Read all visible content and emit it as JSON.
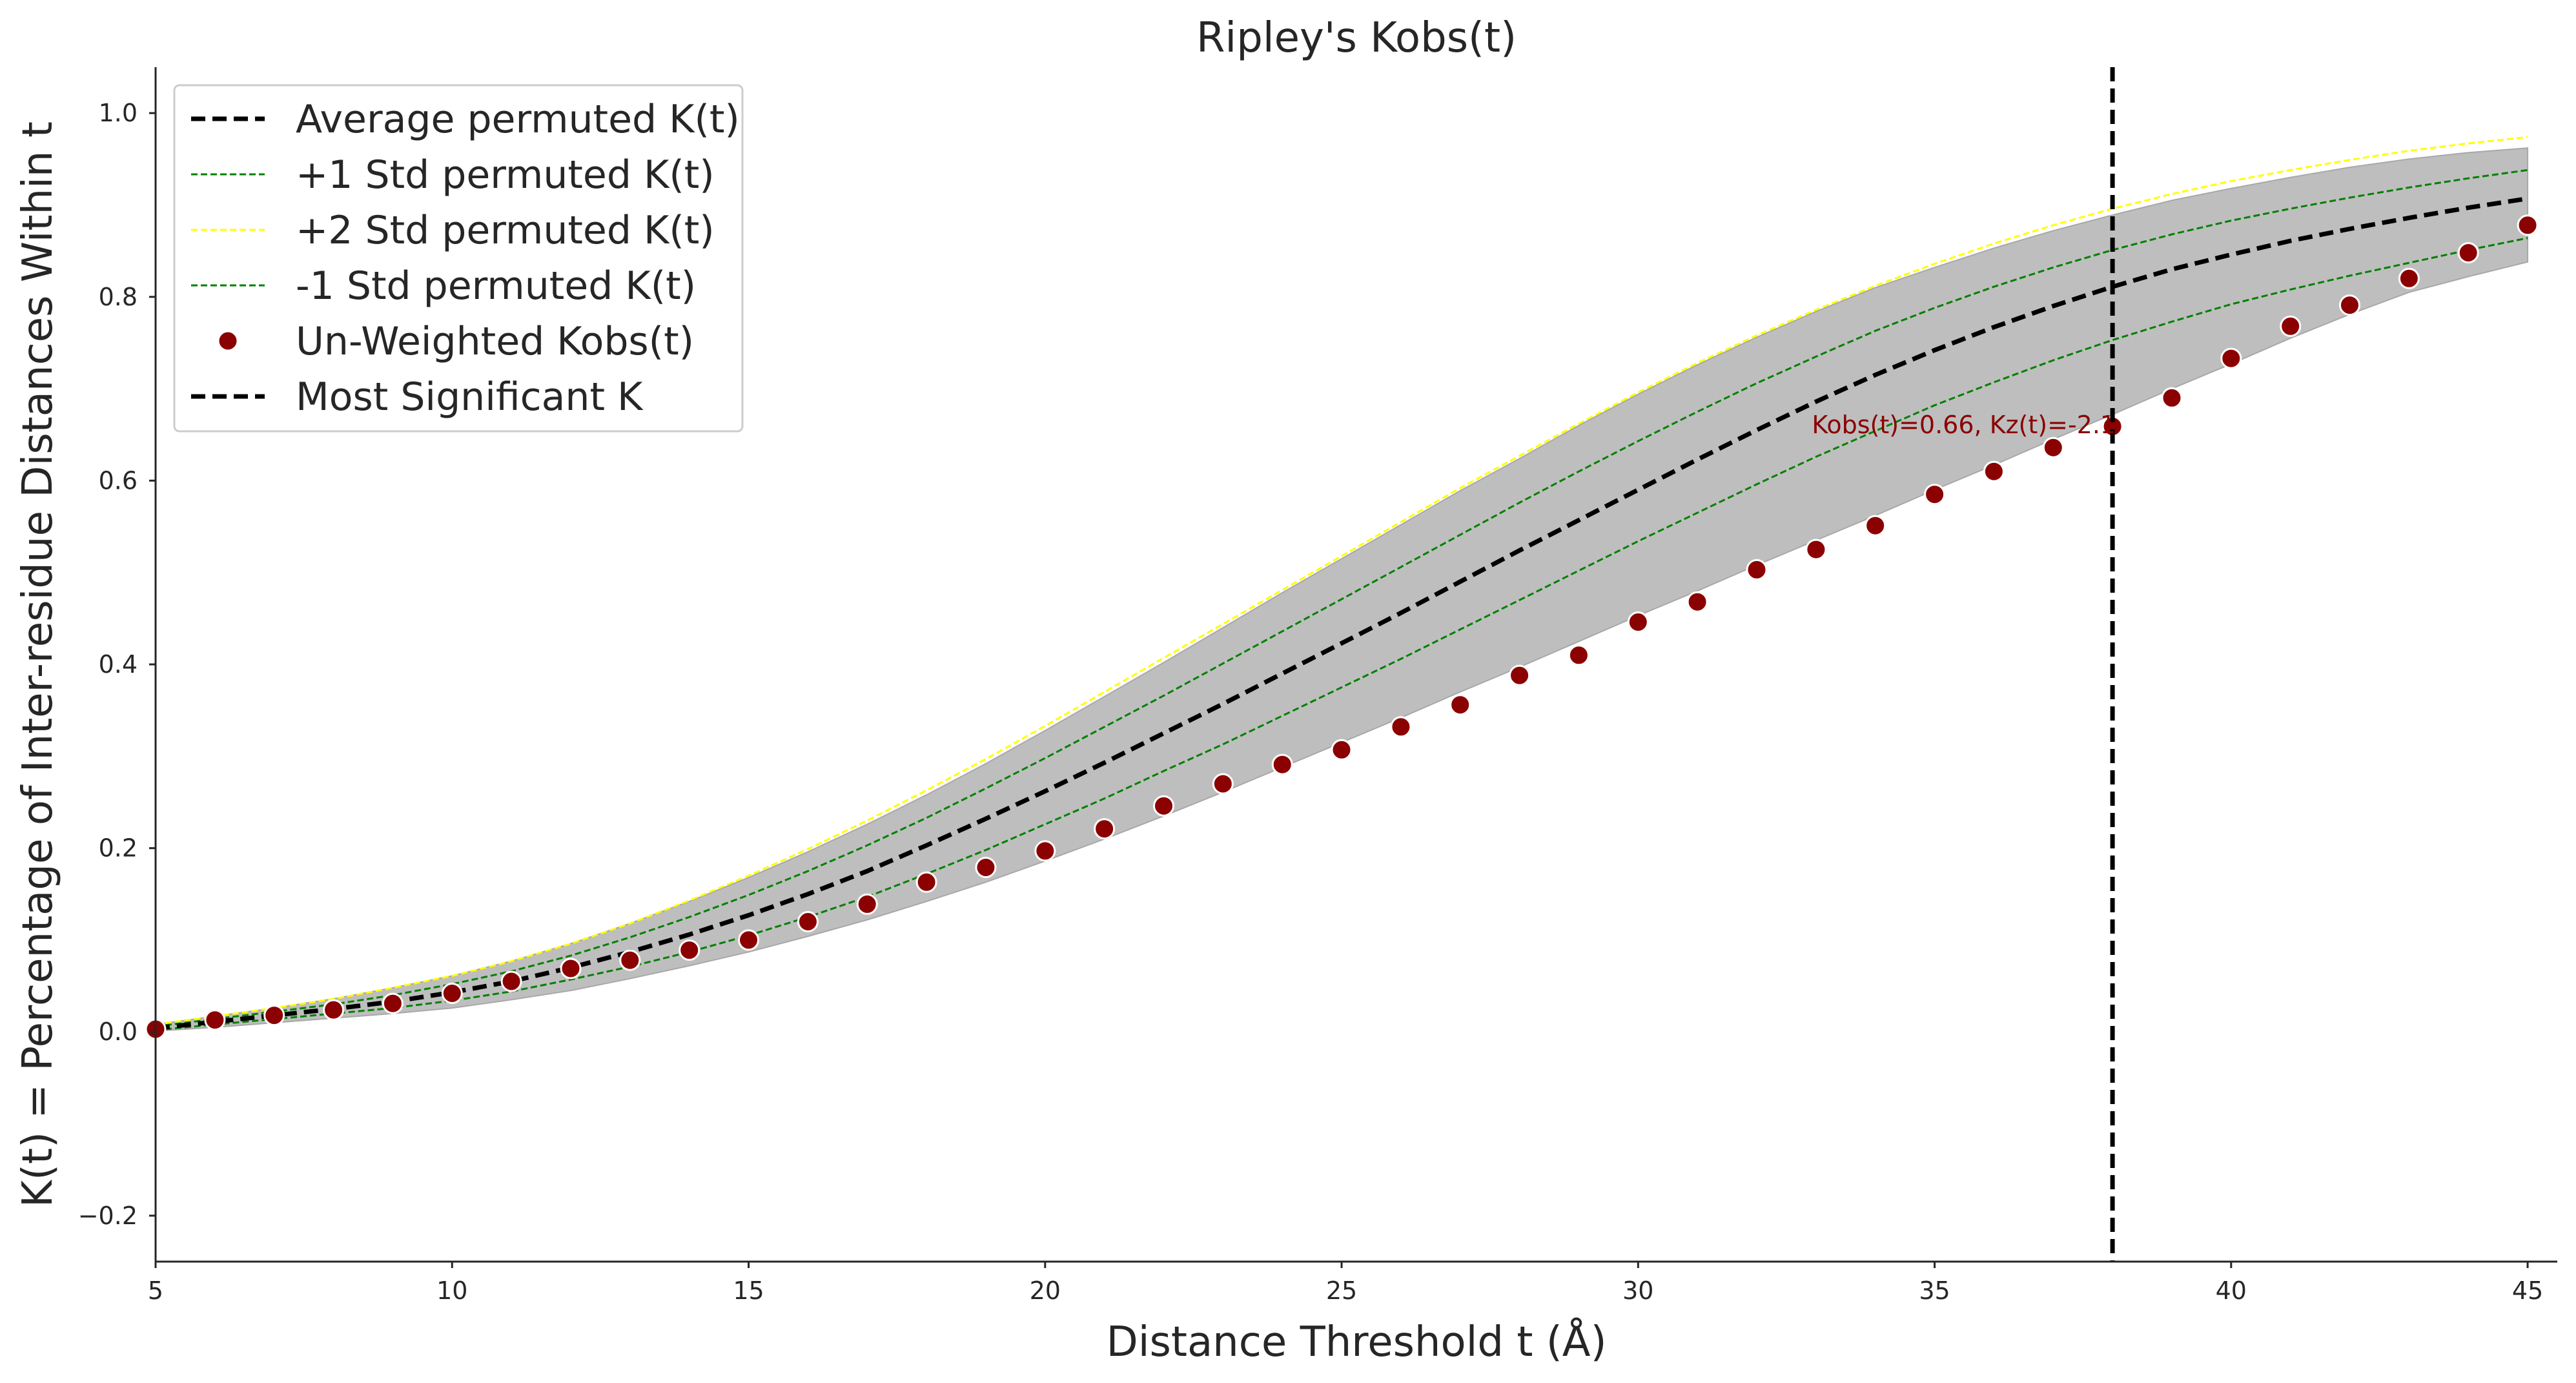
{
  "chart_data": {
    "type": "line",
    "title": "Ripley's Kobs(t)",
    "xlabel": "Distance Threshold t (Å)",
    "ylabel": "K(t) = Percentage of Inter-residue Distances Within t",
    "xlim": [
      5,
      45.5
    ],
    "ylim": [
      -0.25,
      1.05
    ],
    "xticks": [
      5,
      10,
      15,
      20,
      25,
      30,
      35,
      40,
      45
    ],
    "yticks": [
      -0.2,
      0.0,
      0.2,
      0.4,
      0.6,
      0.8,
      1.0
    ],
    "x": [
      5,
      6,
      7,
      8,
      9,
      10,
      11,
      12,
      13,
      14,
      15,
      16,
      17,
      18,
      19,
      20,
      21,
      22,
      23,
      24,
      25,
      26,
      27,
      28,
      29,
      30,
      31,
      32,
      33,
      34,
      35,
      36,
      37,
      38,
      39,
      40,
      41,
      42,
      43,
      44,
      45
    ],
    "series": [
      {
        "name": "Average permuted K(t)",
        "style": "dashed",
        "color": "#000000",
        "values": [
          0.004,
          0.011,
          0.018,
          0.025,
          0.033,
          0.043,
          0.055,
          0.07,
          0.087,
          0.106,
          0.127,
          0.15,
          0.175,
          0.203,
          0.232,
          0.262,
          0.293,
          0.325,
          0.357,
          0.39,
          0.423,
          0.456,
          0.49,
          0.524,
          0.557,
          0.59,
          0.623,
          0.655,
          0.686,
          0.715,
          0.742,
          0.767,
          0.79,
          0.811,
          0.83,
          0.846,
          0.861,
          0.874,
          0.886,
          0.897,
          0.907
        ]
      },
      {
        "name": "+1 Std permuted K(t)",
        "style": "dashed",
        "color": "#008000",
        "values": [
          0.006,
          0.014,
          0.022,
          0.03,
          0.04,
          0.052,
          0.066,
          0.083,
          0.103,
          0.125,
          0.149,
          0.175,
          0.203,
          0.233,
          0.265,
          0.298,
          0.332,
          0.366,
          0.401,
          0.436,
          0.471,
          0.506,
          0.541,
          0.576,
          0.61,
          0.643,
          0.675,
          0.706,
          0.735,
          0.763,
          0.788,
          0.811,
          0.832,
          0.851,
          0.868,
          0.883,
          0.896,
          0.908,
          0.919,
          0.929,
          0.938
        ]
      },
      {
        "name": "+2 Std permuted K(t)",
        "style": "dashed",
        "color": "#ffff00",
        "values": [
          0.008,
          0.017,
          0.026,
          0.036,
          0.048,
          0.061,
          0.077,
          0.096,
          0.118,
          0.143,
          0.17,
          0.199,
          0.23,
          0.263,
          0.297,
          0.333,
          0.37,
          0.407,
          0.444,
          0.481,
          0.518,
          0.555,
          0.592,
          0.627,
          0.662,
          0.696,
          0.728,
          0.758,
          0.786,
          0.812,
          0.836,
          0.858,
          0.878,
          0.896,
          0.912,
          0.926,
          0.938,
          0.949,
          0.959,
          0.967,
          0.974
        ]
      },
      {
        "name": "-1 Std permuted K(t)",
        "style": "dashed",
        "color": "#008000",
        "values": [
          0.002,
          0.008,
          0.014,
          0.02,
          0.026,
          0.034,
          0.044,
          0.057,
          0.071,
          0.087,
          0.105,
          0.125,
          0.147,
          0.172,
          0.198,
          0.226,
          0.254,
          0.284,
          0.313,
          0.344,
          0.375,
          0.406,
          0.438,
          0.47,
          0.502,
          0.534,
          0.565,
          0.596,
          0.626,
          0.654,
          0.682,
          0.707,
          0.731,
          0.753,
          0.773,
          0.792,
          0.808,
          0.823,
          0.837,
          0.851,
          0.864
        ]
      },
      {
        "name": "Un-Weighted Kobs(t)",
        "style": "markers",
        "color": "#8b0000",
        "values": [
          0.003,
          0.013,
          0.018,
          0.024,
          0.031,
          0.042,
          0.055,
          0.069,
          0.078,
          0.089,
          0.1,
          0.12,
          0.139,
          0.163,
          0.179,
          0.197,
          0.221,
          0.246,
          0.27,
          0.291,
          0.307,
          0.332,
          0.356,
          0.388,
          0.41,
          0.446,
          0.468,
          0.503,
          0.525,
          0.551,
          0.585,
          0.61,
          0.636,
          0.659,
          0.69,
          0.733,
          0.768,
          0.791,
          0.82,
          0.848,
          0.878
        ]
      }
    ],
    "band": {
      "fill": "#bebebe",
      "lower": [
        0.001,
        0.005,
        0.01,
        0.015,
        0.02,
        0.026,
        0.035,
        0.045,
        0.058,
        0.072,
        0.087,
        0.104,
        0.122,
        0.142,
        0.163,
        0.186,
        0.21,
        0.235,
        0.261,
        0.288,
        0.315,
        0.342,
        0.37,
        0.397,
        0.425,
        0.453,
        0.48,
        0.508,
        0.535,
        0.562,
        0.59,
        0.617,
        0.645,
        0.672,
        0.7,
        0.727,
        0.755,
        0.781,
        0.805,
        0.822,
        0.838
      ],
      "upper": [
        0.008,
        0.017,
        0.026,
        0.036,
        0.048,
        0.061,
        0.077,
        0.096,
        0.118,
        0.142,
        0.168,
        0.196,
        0.226,
        0.258,
        0.292,
        0.328,
        0.365,
        0.402,
        0.44,
        0.478,
        0.515,
        0.552,
        0.589,
        0.624,
        0.66,
        0.694,
        0.726,
        0.756,
        0.784,
        0.81,
        0.832,
        0.853,
        0.872,
        0.889,
        0.905,
        0.918,
        0.93,
        0.941,
        0.95,
        0.957,
        0.962
      ]
    },
    "vline": {
      "name": "Most Significant K",
      "x": 38,
      "style": "dashed",
      "color": "#000000"
    },
    "annotation": {
      "text": "Kobs(t)=0.66, Kz(t)=-2.1",
      "x": 38,
      "y": 0.66,
      "color": "#8b0000"
    },
    "legend": {
      "position": "top-left",
      "entries": [
        "Average permuted K(t)",
        "+1 Std permuted K(t)",
        "+2 Std permuted K(t)",
        "-1 Std permuted K(t)",
        "Un-Weighted Kobs(t)",
        "Most Significant K"
      ]
    },
    "grid": false
  }
}
